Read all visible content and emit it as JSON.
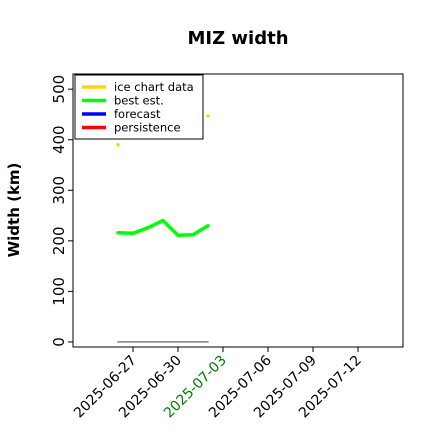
{
  "chart_data": {
    "type": "line",
    "title": "MIZ width",
    "xlabel": "",
    "ylabel": "Width (km)",
    "ylim": [
      -10,
      530
    ],
    "xlim": [
      "2025-06-23",
      "2025-07-15"
    ],
    "x_ticks": [
      "2025-06-27",
      "2025-06-30",
      "2025-07-03",
      "2025-07-06",
      "2025-07-09",
      "2025-07-12"
    ],
    "x_tick_colors": [
      "#000000",
      "#000000",
      "#008000",
      "#000000",
      "#000000",
      "#000000"
    ],
    "y_ticks": [
      0,
      100,
      200,
      300,
      400,
      500
    ],
    "grid": false,
    "legend_position": "top-left",
    "legend": [
      {
        "label": "ice chart data",
        "color": "#ffd700"
      },
      {
        "label": "best est.",
        "color": "#00ff00"
      },
      {
        "label": "forecast",
        "color": "#0000ff"
      },
      {
        "label": "persistence",
        "color": "#ff0000"
      }
    ],
    "series": [
      {
        "name": "ice chart data",
        "color": "#ffd700",
        "style": "points",
        "points": [
          {
            "x": "2025-06-26",
            "y": 390
          },
          {
            "x": "2025-07-02",
            "y": 447
          }
        ]
      },
      {
        "name": "best est.",
        "color": "#00ff00",
        "style": "line",
        "points": [
          {
            "x": "2025-06-26",
            "y": 216
          },
          {
            "x": "2025-06-27",
            "y": 215
          },
          {
            "x": "2025-06-28",
            "y": 226
          },
          {
            "x": "2025-06-29",
            "y": 240
          },
          {
            "x": "2025-06-30",
            "y": 211
          },
          {
            "x": "2025-07-01",
            "y": 212
          },
          {
            "x": "2025-07-02",
            "y": 230
          }
        ]
      },
      {
        "name": "",
        "color": "#808080",
        "style": "line",
        "points": [
          {
            "x": "2025-06-26",
            "y": 0
          },
          {
            "x": "2025-07-02",
            "y": 0
          }
        ]
      }
    ]
  }
}
